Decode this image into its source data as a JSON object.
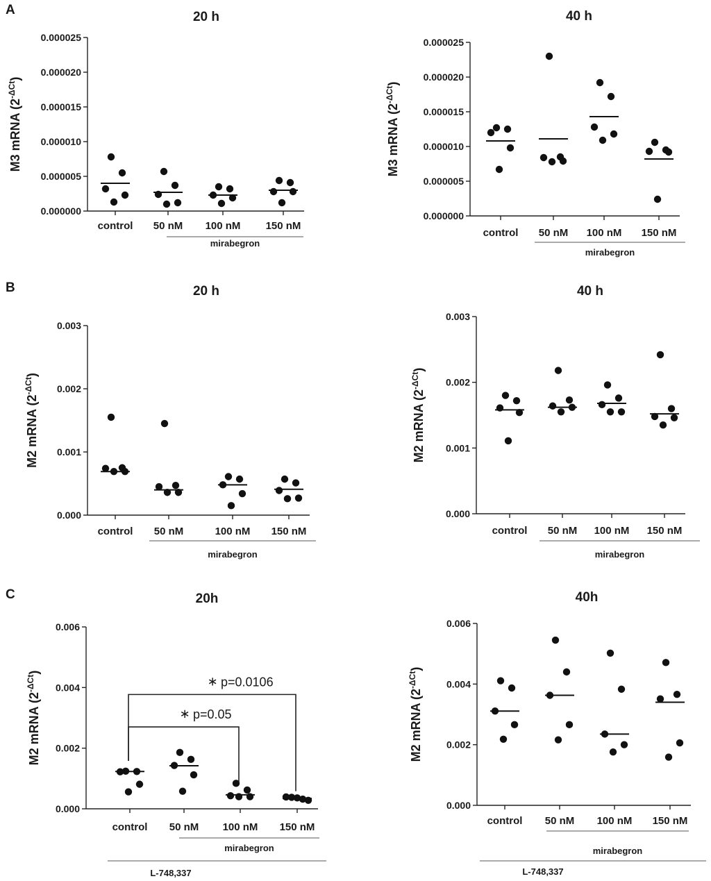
{
  "panel_labels": [
    "A",
    "B",
    "C"
  ],
  "chart_data": [
    {
      "type": "scatter",
      "panel": "A",
      "title": "20 h",
      "ylabel_main": "M3 mRNA (2",
      "ylabel_sup": "-ΔCt",
      "ylabel_close": ")",
      "categories": [
        "control",
        "50 nM",
        "100 nM",
        "150 nM"
      ],
      "group_label": "mirabegron",
      "yticks": [
        "0.000000",
        "0.000005",
        "0.000010",
        "0.000015",
        "0.000020",
        "0.000025"
      ],
      "ylim": [
        0,
        2.5e-05
      ],
      "points": [
        [
          7.8e-06,
          5.5e-06,
          3.2e-06,
          2.3e-06,
          1.3e-06
        ],
        [
          5.7e-06,
          3.7e-06,
          2.4e-06,
          1e-06,
          1.2e-06
        ],
        [
          3.5e-06,
          3.2e-06,
          2.3e-06,
          1.9e-06,
          1.1e-06
        ],
        [
          4.4e-06,
          4.1e-06,
          2.8e-06,
          2.8e-06,
          1.2e-06
        ]
      ],
      "means": [
        4e-06,
        2.7e-06,
        2.3e-06,
        3e-06
      ]
    },
    {
      "type": "scatter",
      "panel": "A",
      "title": "40 h",
      "ylabel_main": "M3 mRNA (2",
      "ylabel_sup": "-ΔCt",
      "ylabel_close": ")",
      "categories": [
        "control",
        "50 nM",
        "100 nM",
        "150 nM"
      ],
      "group_label": "mirabegron",
      "yticks": [
        "0.000000",
        "0.000005",
        "0.000010",
        "0.000015",
        "0.000020",
        "0.000025"
      ],
      "ylim": [
        0,
        2.5e-05
      ],
      "points": [
        [
          1.27e-05,
          1.25e-05,
          1.2e-05,
          9.8e-06,
          6.7e-06
        ],
        [
          2.3e-05,
          8.5e-06,
          8.4e-06,
          7.9e-06,
          7.8e-06
        ],
        [
          1.92e-05,
          1.72e-05,
          1.28e-05,
          1.18e-05,
          1.09e-05
        ],
        [
          1.06e-05,
          9.5e-06,
          9.3e-06,
          9.2e-06,
          2.4e-06
        ]
      ],
      "means": [
        1.08e-05,
        1.11e-05,
        1.43e-05,
        8.2e-06
      ]
    },
    {
      "type": "scatter",
      "panel": "B",
      "title": "20 h",
      "ylabel_main": "M2 mRNA (2",
      "ylabel_sup": "-ΔCt",
      "ylabel_close": ")",
      "categories": [
        "control",
        "50 nM",
        "100 nM",
        "150 nM"
      ],
      "group_label": "mirabegron",
      "yticks": [
        "0.000",
        "0.001",
        "0.002",
        "0.003"
      ],
      "ylim": [
        0,
        0.003
      ],
      "points": [
        [
          0.00155,
          0.00075,
          0.00074,
          0.00069,
          0.00069
        ],
        [
          0.00145,
          0.00047,
          0.00045,
          0.00036,
          0.00036
        ],
        [
          0.00061,
          0.00057,
          0.00048,
          0.00034,
          0.00015
        ],
        [
          0.00057,
          0.00051,
          0.00039,
          0.00027,
          0.00026
        ]
      ],
      "means": [
        0.00069,
        0.0004,
        0.00048,
        0.00041
      ]
    },
    {
      "type": "scatter",
      "panel": "B",
      "title": "40 h",
      "ylabel_main": "M2 mRNA (2",
      "ylabel_sup": "-ΔCt",
      "ylabel_close": ")",
      "categories": [
        "control",
        "50 nM",
        "100 nM",
        "150 nM"
      ],
      "group_label": "mirabegron",
      "yticks": [
        "0.000",
        "0.001",
        "0.002",
        "0.003"
      ],
      "ylim": [
        0,
        0.003
      ],
      "points": [
        [
          0.0018,
          0.00172,
          0.00161,
          0.00154,
          0.00111
        ],
        [
          0.00218,
          0.00173,
          0.00164,
          0.00162,
          0.00155
        ],
        [
          0.00196,
          0.00176,
          0.00166,
          0.00155,
          0.00155
        ],
        [
          0.00242,
          0.0016,
          0.00148,
          0.00146,
          0.00135
        ]
      ],
      "means": [
        0.00158,
        0.00162,
        0.00168,
        0.00152
      ]
    },
    {
      "type": "scatter",
      "panel": "C",
      "title": "20h",
      "ylabel_main": "M2 mRNA (2",
      "ylabel_sup": "-ΔCt",
      "ylabel_close": ")",
      "categories": [
        "control",
        "50 nM",
        "100 nM",
        "150 nM"
      ],
      "group_label": "mirabegron",
      "outer_group_label": "L-748,337",
      "yticks": [
        "0.000",
        "0.002",
        "0.004",
        "0.006"
      ],
      "ylim": [
        0,
        0.006
      ],
      "points": [
        [
          0.00124,
          0.00123,
          0.00122,
          0.00081,
          0.00056
        ],
        [
          0.00186,
          0.00163,
          0.00143,
          0.00112,
          0.00058
        ],
        [
          0.00084,
          0.00062,
          0.00043,
          0.0004,
          0.0004
        ],
        [
          0.00039,
          0.00038,
          0.00036,
          0.00032,
          0.00028
        ]
      ],
      "means": [
        0.00123,
        0.00142,
        0.00046,
        0.00034
      ],
      "annotations": [
        {
          "text": "p=0.05",
          "from": "control",
          "to": "100 nM",
          "y": 0.0027,
          "star": "∗"
        },
        {
          "text": "p=0.0106",
          "from": "control",
          "to": "150 nM",
          "y": 0.00377,
          "star": "∗"
        }
      ]
    },
    {
      "type": "scatter",
      "panel": "C",
      "title": "40h",
      "ylabel_main": "M2 mRNA (2",
      "ylabel_sup": "-ΔCt",
      "ylabel_close": ")",
      "categories": [
        "control",
        "50 nM",
        "100 nM",
        "150 nM"
      ],
      "group_label": "mirabegron",
      "outer_group_label": "L-748,337",
      "yticks": [
        "0.000",
        "0.002",
        "0.004",
        "0.006"
      ],
      "ylim": [
        0,
        0.006
      ],
      "points": [
        [
          0.00411,
          0.00387,
          0.00311,
          0.00266,
          0.00218
        ],
        [
          0.00545,
          0.0044,
          0.00363,
          0.00266,
          0.00216
        ],
        [
          0.00502,
          0.00383,
          0.00235,
          0.002,
          0.00176
        ],
        [
          0.00471,
          0.00366,
          0.00351,
          0.00206,
          0.00159
        ]
      ],
      "means": [
        0.00311,
        0.00363,
        0.00235,
        0.0034
      ]
    }
  ]
}
